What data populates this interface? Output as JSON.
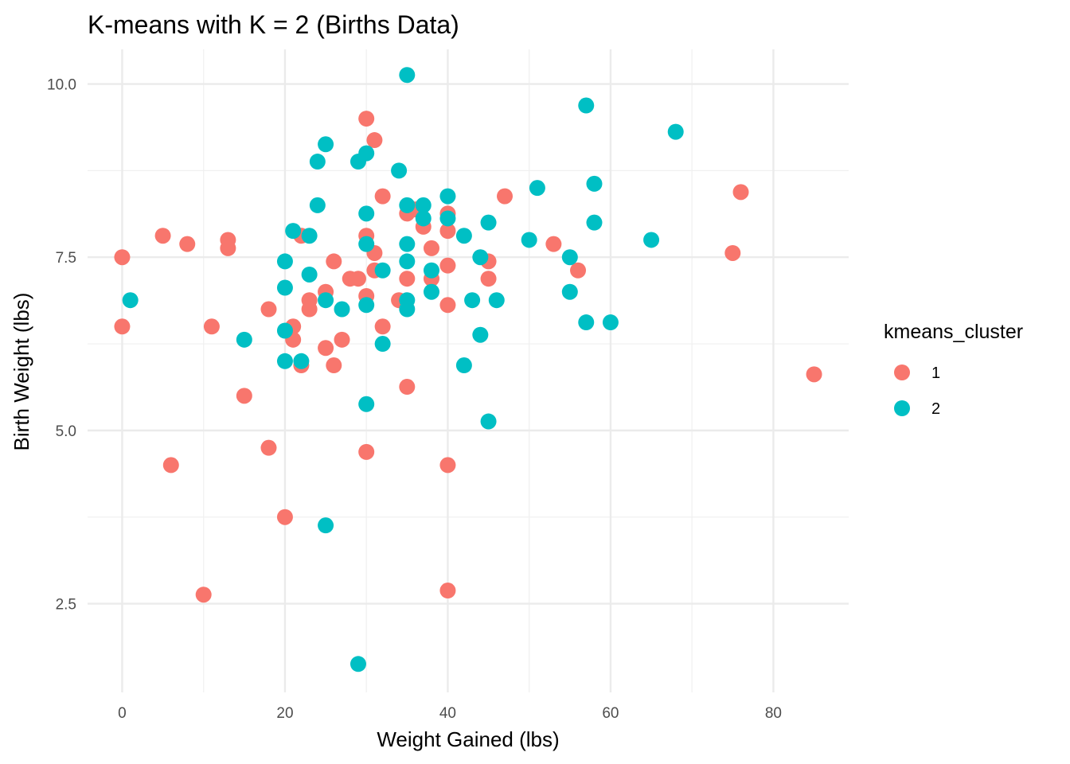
{
  "chart_data": {
    "type": "scatter",
    "title": "K-means with K = 2 (Births Data)",
    "xlabel": "Weight Gained (lbs)",
    "ylabel": "Birth Weight (lbs)",
    "xlim": [
      -4.25,
      89.25
    ],
    "ylim": [
      1.22,
      10.5
    ],
    "x_ticks": [
      0,
      20,
      40,
      60,
      80
    ],
    "y_ticks": [
      2.5,
      5.0,
      7.5,
      10.0
    ],
    "x_tick_labels": [
      "0",
      "20",
      "40",
      "60",
      "80"
    ],
    "y_tick_labels": [
      "2.5",
      "5.0",
      "7.5",
      "10.0"
    ],
    "x_minor_ticks": [
      10,
      30,
      50,
      70
    ],
    "y_minor_ticks": [
      3.75,
      6.25,
      8.75
    ],
    "grid": true,
    "legend": {
      "title": "kmeans_cluster",
      "position": "right"
    },
    "series": [
      {
        "name": "1",
        "color": "#F8766D",
        "points": [
          [
            0,
            7.5
          ],
          [
            0,
            6.5
          ],
          [
            5,
            7.81
          ],
          [
            6,
            4.5
          ],
          [
            8,
            7.69
          ],
          [
            10,
            2.63
          ],
          [
            11,
            6.5
          ],
          [
            13,
            7.75
          ],
          [
            13,
            7.63
          ],
          [
            15,
            5.5
          ],
          [
            18,
            6.75
          ],
          [
            18,
            4.75
          ],
          [
            20,
            3.75
          ],
          [
            21,
            6.5
          ],
          [
            21,
            6.31
          ],
          [
            22,
            7.81
          ],
          [
            22,
            5.94
          ],
          [
            23,
            6.88
          ],
          [
            23,
            6.75
          ],
          [
            25,
            7.0
          ],
          [
            25,
            6.19
          ],
          [
            26,
            7.44
          ],
          [
            26,
            5.94
          ],
          [
            27,
            6.31
          ],
          [
            28,
            7.19
          ],
          [
            29,
            7.19
          ],
          [
            30,
            9.5
          ],
          [
            30,
            7.81
          ],
          [
            30,
            6.94
          ],
          [
            30,
            4.69
          ],
          [
            31,
            9.19
          ],
          [
            31,
            7.56
          ],
          [
            31,
            7.31
          ],
          [
            32,
            8.38
          ],
          [
            32,
            6.5
          ],
          [
            34,
            6.88
          ],
          [
            35,
            8.13
          ],
          [
            35,
            7.19
          ],
          [
            35,
            5.63
          ],
          [
            36,
            8.19
          ],
          [
            37,
            7.94
          ],
          [
            38,
            7.63
          ],
          [
            38,
            7.19
          ],
          [
            40,
            8.13
          ],
          [
            40,
            7.88
          ],
          [
            40,
            7.38
          ],
          [
            40,
            6.81
          ],
          [
            40,
            4.5
          ],
          [
            40,
            2.69
          ],
          [
            45,
            7.44
          ],
          [
            45,
            7.19
          ],
          [
            47,
            8.38
          ],
          [
            53,
            7.69
          ],
          [
            56,
            7.31
          ],
          [
            75,
            7.56
          ],
          [
            76,
            8.44
          ],
          [
            85,
            5.81
          ]
        ]
      },
      {
        "name": "2",
        "color": "#00BFC4",
        "points": [
          [
            1,
            6.88
          ],
          [
            15,
            6.31
          ],
          [
            20,
            7.44
          ],
          [
            20,
            7.06
          ],
          [
            20,
            6.44
          ],
          [
            20,
            6.0
          ],
          [
            21,
            7.88
          ],
          [
            22,
            6.0
          ],
          [
            23,
            7.81
          ],
          [
            23,
            7.25
          ],
          [
            24,
            8.88
          ],
          [
            24,
            8.25
          ],
          [
            25,
            9.13
          ],
          [
            25,
            6.88
          ],
          [
            25,
            3.63
          ],
          [
            27,
            6.75
          ],
          [
            29,
            8.88
          ],
          [
            29,
            1.63
          ],
          [
            30,
            9.0
          ],
          [
            30,
            8.13
          ],
          [
            30,
            7.69
          ],
          [
            30,
            6.81
          ],
          [
            30,
            5.38
          ],
          [
            32,
            7.31
          ],
          [
            32,
            6.25
          ],
          [
            34,
            8.75
          ],
          [
            35,
            10.13
          ],
          [
            35,
            8.25
          ],
          [
            35,
            7.69
          ],
          [
            35,
            7.44
          ],
          [
            35,
            6.88
          ],
          [
            35,
            6.75
          ],
          [
            37,
            8.25
          ],
          [
            37,
            8.06
          ],
          [
            38,
            7.31
          ],
          [
            38,
            7.0
          ],
          [
            40,
            8.38
          ],
          [
            40,
            8.06
          ],
          [
            42,
            7.81
          ],
          [
            42,
            5.94
          ],
          [
            43,
            6.88
          ],
          [
            44,
            7.5
          ],
          [
            44,
            6.38
          ],
          [
            45,
            8.0
          ],
          [
            45,
            5.13
          ],
          [
            46,
            6.88
          ],
          [
            50,
            7.75
          ],
          [
            51,
            8.5
          ],
          [
            55,
            7.5
          ],
          [
            55,
            7.0
          ],
          [
            57,
            9.69
          ],
          [
            57,
            6.56
          ],
          [
            58,
            8.56
          ],
          [
            58,
            8.0
          ],
          [
            60,
            6.56
          ],
          [
            65,
            7.75
          ],
          [
            68,
            9.31
          ]
        ]
      }
    ]
  }
}
